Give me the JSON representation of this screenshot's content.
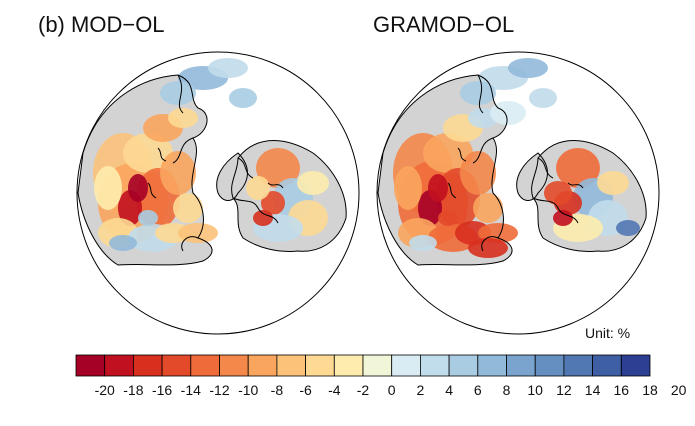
{
  "panel_prefix": "(b)",
  "panels": [
    {
      "title": "MOD−OL"
    },
    {
      "title": "GRAMOD−OL"
    }
  ],
  "unit_label": "Unit: %",
  "colorbar": {
    "tick_labels": [
      "-20",
      "-18",
      "-16",
      "-14",
      "-12",
      "-10",
      "-8",
      "-6",
      "-4",
      "-2",
      "0",
      "2",
      "4",
      "6",
      "8",
      "10",
      "12",
      "14",
      "16",
      "18",
      "20"
    ],
    "colors": [
      "#a50026",
      "#c1101f",
      "#d7301f",
      "#e34a2a",
      "#ef6c3a",
      "#f4874a",
      "#f9a55e",
      "#fcc27a",
      "#fdd994",
      "#fdecae",
      "#f2f6d8",
      "#d9ecf3",
      "#c1dceb",
      "#a9cce3",
      "#91b9d9",
      "#7aa4cd",
      "#668fc1",
      "#5278b4",
      "#3f5fa5",
      "#2c3f93"
    ]
  },
  "map_colors": {
    "land_mask": "#d3d3d3",
    "ocean": "#ffffff",
    "coastline": "#000000"
  }
}
